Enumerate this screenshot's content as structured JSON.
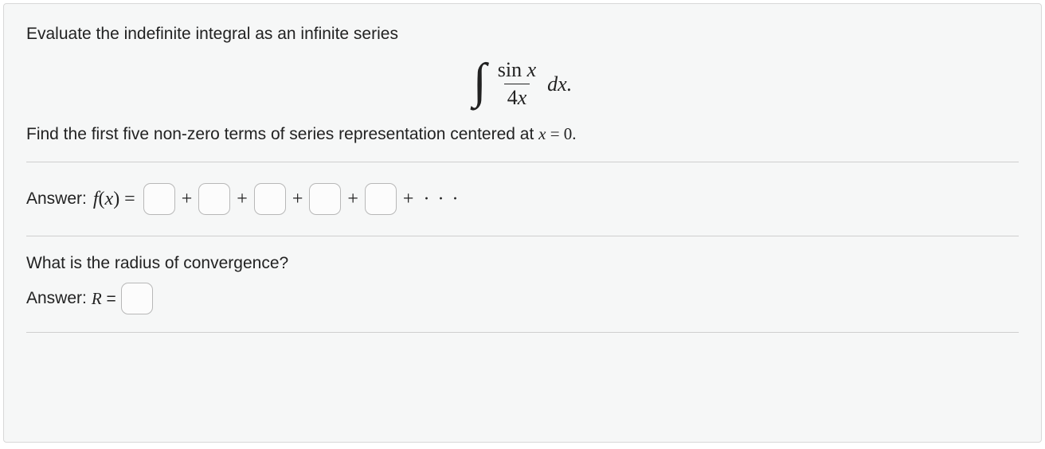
{
  "prompt": {
    "line1": "Evaluate the indefinite integral as an infinite series",
    "integral": {
      "numerator": "sin x",
      "denominator": "4x",
      "differential": "dx."
    },
    "line2_pre": "Find the first five non-zero terms of series representation centered at ",
    "line2_eq_lhs": "x",
    "line2_eq_rhs": " = 0."
  },
  "answer1": {
    "label": "Answer: ",
    "fx": "f(x) = ",
    "plus": "+",
    "trailing": " · · ·",
    "values": [
      "",
      "",
      "",
      "",
      ""
    ]
  },
  "q2": {
    "question": "What is the radius of convergence?",
    "label": "Answer: ",
    "R": "R = ",
    "value": ""
  },
  "colors": {
    "panel_bg": "#f6f7f7",
    "border": "#d8d8d8",
    "rule": "#cfcfcf",
    "text": "#222222",
    "input_border": "#b8b8b8"
  }
}
